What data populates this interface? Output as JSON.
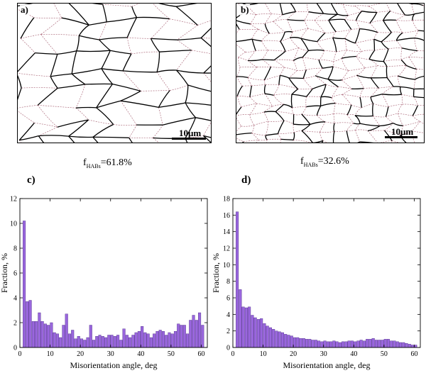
{
  "panels": {
    "a": {
      "label": "a)",
      "scale_label": "10μm",
      "hab_prefix": "f",
      "hab_sub": "HABs",
      "hab_value": "=61.8%"
    },
    "b": {
      "label": "b)",
      "scale_label": "10μm",
      "hab_prefix": "f",
      "hab_sub": "HABs",
      "hab_value": "=32.6%"
    },
    "c": {
      "label": "c)"
    },
    "d": {
      "label": "d)"
    }
  },
  "colors": {
    "bar_fill": "#9966dd",
    "bar_stroke": "#4b2a86",
    "hab": "#000000",
    "lab": "#b07080"
  },
  "chart_data": [
    {
      "type": "bar",
      "panel": "c",
      "xlabel": "Misorientation angle, deg",
      "ylabel": "Fraction, %",
      "xlim": [
        0,
        62
      ],
      "ylim": [
        0,
        12
      ],
      "xticks": [
        0,
        10,
        20,
        30,
        40,
        50,
        60
      ],
      "yticks": [
        0,
        2,
        4,
        6,
        8,
        10,
        12
      ],
      "bin_width": 1,
      "x": [
        1,
        2,
        3,
        4,
        5,
        6,
        7,
        8,
        9,
        10,
        11,
        12,
        13,
        14,
        15,
        16,
        17,
        18,
        19,
        20,
        21,
        22,
        23,
        24,
        25,
        26,
        27,
        28,
        29,
        30,
        31,
        32,
        33,
        34,
        35,
        36,
        37,
        38,
        39,
        40,
        41,
        42,
        43,
        44,
        45,
        46,
        47,
        48,
        49,
        50,
        51,
        52,
        53,
        54,
        55,
        56,
        57,
        58,
        59,
        60
      ],
      "values": [
        10.2,
        3.7,
        3.8,
        2.1,
        2.1,
        2.8,
        2.1,
        1.9,
        1.8,
        2.0,
        1.2,
        1.1,
        0.8,
        1.8,
        2.7,
        1.1,
        1.4,
        0.7,
        0.9,
        0.7,
        0.6,
        0.8,
        1.8,
        0.6,
        0.9,
        1.0,
        0.9,
        0.8,
        1.0,
        1.0,
        0.9,
        1.0,
        0.6,
        1.5,
        1.0,
        0.8,
        1.0,
        1.2,
        1.3,
        1.7,
        1.2,
        1.1,
        0.8,
        1.1,
        1.3,
        1.4,
        1.3,
        1.0,
        1.2,
        1.1,
        1.3,
        1.9,
        1.8,
        1.8,
        1.1,
        2.2,
        2.6,
        2.2,
        2.8,
        1.8
      ]
    },
    {
      "type": "bar",
      "panel": "d",
      "xlabel": "Misorientation angle, deg",
      "ylabel": "Fraction, %",
      "xlim": [
        0,
        62
      ],
      "ylim": [
        0,
        18
      ],
      "xticks": [
        0,
        10,
        20,
        30,
        40,
        50,
        60
      ],
      "yticks": [
        0,
        2,
        4,
        6,
        8,
        10,
        12,
        14,
        16,
        18
      ],
      "bin_width": 1,
      "x": [
        1,
        2,
        3,
        4,
        5,
        6,
        7,
        8,
        9,
        10,
        11,
        12,
        13,
        14,
        15,
        16,
        17,
        18,
        19,
        20,
        21,
        22,
        23,
        24,
        25,
        26,
        27,
        28,
        29,
        30,
        31,
        32,
        33,
        34,
        35,
        36,
        37,
        38,
        39,
        40,
        41,
        42,
        43,
        44,
        45,
        46,
        47,
        48,
        49,
        50,
        51,
        52,
        53,
        54,
        55,
        56,
        57,
        58,
        59,
        60
      ],
      "values": [
        16.4,
        7.0,
        4.9,
        4.8,
        4.9,
        3.9,
        3.6,
        3.4,
        3.5,
        2.9,
        2.6,
        2.4,
        2.2,
        2.0,
        1.9,
        1.8,
        1.6,
        1.5,
        1.4,
        1.2,
        1.2,
        1.1,
        1.1,
        1.0,
        1.0,
        0.9,
        0.9,
        0.8,
        0.7,
        0.8,
        0.7,
        0.7,
        0.8,
        0.7,
        0.6,
        0.7,
        0.7,
        0.8,
        0.8,
        0.7,
        0.8,
        0.9,
        0.8,
        1.0,
        1.0,
        1.1,
        0.9,
        0.9,
        0.9,
        1.0,
        1.0,
        0.8,
        0.8,
        0.7,
        0.6,
        0.6,
        0.5,
        0.4,
        0.3,
        0.3
      ]
    }
  ]
}
